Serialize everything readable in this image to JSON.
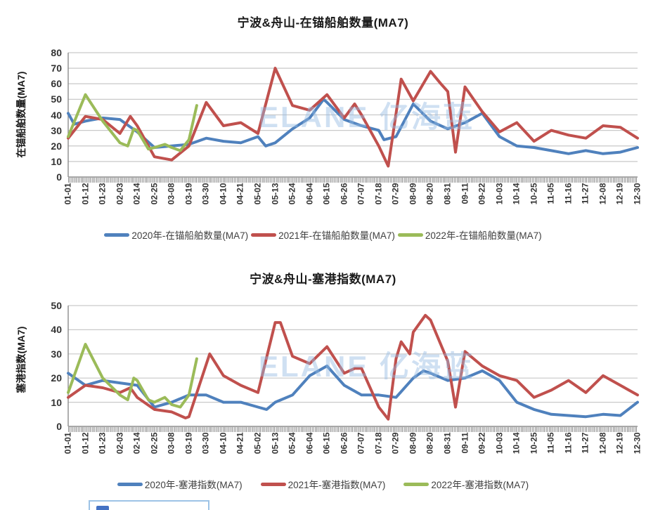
{
  "watermark": "ELANE 亿海蓝",
  "colors": {
    "y2020": "#4F81BD",
    "y2021": "#C0504D",
    "y2022": "#9BBB59",
    "grid": "#C9C9C9",
    "axis": "#8C8C8C",
    "title_text": "#1A1A1A",
    "tick_text": "#333333",
    "legend_text": "#404040",
    "watermark_blue": "#95BBE2",
    "partial_box_border": "#9DC3E6",
    "partial_box_icon": "#4472C4"
  },
  "x_ticks": [
    "01-01",
    "01-12",
    "01-23",
    "02-03",
    "02-14",
    "02-25",
    "03-08",
    "03-19",
    "03-30",
    "04-10",
    "04-21",
    "05-02",
    "05-13",
    "05-24",
    "06-04",
    "06-15",
    "06-26",
    "07-07",
    "07-18",
    "07-29",
    "08-09",
    "08-20",
    "08-31",
    "09-11",
    "09-22",
    "10-03",
    "10-14",
    "10-25",
    "11-05",
    "11-16",
    "11-27",
    "12-08",
    "12-19",
    "12-30"
  ],
  "x_unit": "tick_index (0 = 01-01, 33 = 12-30, 11 days per tick; fractional = dates between ticks)",
  "chart_data": [
    {
      "type": "line",
      "title": "宁波&舟山-在锚船舶数量(MA7)",
      "ylabel": "在锚船舶数量(MA7)",
      "xlabel": "",
      "ylim": [
        0,
        80
      ],
      "y_step": 10,
      "y_tick_labels": [
        0,
        10,
        20,
        30,
        40,
        50,
        60,
        70,
        80
      ],
      "grid": true,
      "legend_position": "bottom",
      "categories": [
        "01-01",
        "01-12",
        "01-23",
        "02-03",
        "02-14",
        "02-25",
        "03-08",
        "03-19",
        "03-30",
        "04-10",
        "04-21",
        "05-02",
        "05-13",
        "05-24",
        "06-04",
        "06-15",
        "06-26",
        "07-07",
        "07-18",
        "07-29",
        "08-09",
        "08-20",
        "08-31",
        "09-11",
        "09-22",
        "10-03",
        "10-14",
        "10-25",
        "11-05",
        "11-16",
        "11-27",
        "12-08",
        "12-19",
        "12-30"
      ],
      "series": [
        {
          "name": "2020年-在锚船舶数量(MA7)",
          "color_key": "y2020",
          "x": [
            0,
            0.35,
            1,
            2,
            3,
            4,
            5,
            6,
            7,
            8,
            9,
            10,
            11,
            11.45,
            12,
            13,
            14,
            14.8,
            15,
            16,
            17,
            18,
            18.3,
            19,
            20,
            21,
            22,
            23,
            24,
            25,
            26,
            27,
            28,
            29,
            30,
            31,
            32,
            33
          ],
          "values": [
            41,
            34,
            36,
            38,
            37,
            29,
            19,
            20,
            21,
            25,
            23,
            22,
            26,
            20,
            22,
            31,
            38,
            50,
            48,
            37,
            33,
            30,
            24,
            26,
            47,
            36,
            31,
            35,
            41,
            26,
            20,
            19,
            17,
            15,
            17,
            15,
            16,
            19
          ]
        },
        {
          "name": "2021年-在锚船舶数量(MA7)",
          "color_key": "y2021",
          "x": [
            0,
            1,
            2,
            3,
            3.6,
            4,
            5,
            6,
            7,
            8,
            9,
            10,
            11,
            12,
            13,
            14,
            15,
            16,
            16.6,
            17,
            18,
            18.55,
            19.3,
            20,
            21,
            21.6,
            22,
            22.45,
            23,
            24,
            25,
            26,
            27,
            28,
            29,
            30,
            31,
            32,
            33
          ],
          "values": [
            25,
            39,
            37,
            28,
            39,
            33,
            13,
            11,
            20,
            48,
            33,
            35,
            28,
            70,
            46,
            43,
            53,
            38,
            47,
            40,
            20,
            7,
            63,
            49,
            68,
            60,
            55,
            16,
            58,
            42,
            29,
            35,
            23,
            30,
            27,
            25,
            33,
            32,
            25
          ]
        },
        {
          "name": "2022年-在锚船舶数量(MA7)",
          "color_key": "y2022",
          "x": [
            0,
            1,
            2,
            3,
            3.45,
            3.8,
            4,
            4.65,
            5,
            5.6,
            6,
            6.5,
            7,
            7.45
          ],
          "values": [
            26,
            53,
            36,
            22,
            20,
            31,
            30,
            18,
            19,
            21,
            19,
            17,
            24,
            46
          ]
        }
      ]
    },
    {
      "type": "line",
      "title": "宁波&舟山-塞港指数(MA7)",
      "ylabel": "塞港指数(MA7)",
      "xlabel": "",
      "ylim": [
        0,
        50
      ],
      "y_step": 10,
      "y_tick_labels": [
        0,
        10,
        20,
        30,
        40,
        50
      ],
      "grid": true,
      "legend_position": "bottom",
      "categories": [
        "01-01",
        "01-12",
        "01-23",
        "02-03",
        "02-14",
        "02-25",
        "03-08",
        "03-19",
        "03-30",
        "04-10",
        "04-21",
        "05-02",
        "05-13",
        "05-24",
        "06-04",
        "06-15",
        "06-26",
        "07-07",
        "07-18",
        "07-29",
        "08-09",
        "08-20",
        "08-31",
        "09-11",
        "09-22",
        "10-03",
        "10-14",
        "10-25",
        "11-05",
        "11-16",
        "11-27",
        "12-08",
        "12-19",
        "12-30"
      ],
      "series": [
        {
          "name": "2020年-塞港指数(MA7)",
          "color_key": "y2020",
          "x": [
            0,
            1,
            2,
            3,
            4,
            5,
            6,
            7,
            8,
            9,
            10,
            11,
            11.5,
            12,
            13,
            14,
            15,
            16,
            17,
            18,
            19,
            20,
            20.6,
            21,
            22,
            23,
            24,
            25,
            26,
            27,
            28,
            29,
            30,
            31,
            32,
            33
          ],
          "values": [
            22,
            17,
            19,
            18,
            17,
            8,
            10,
            13,
            13,
            10,
            10,
            8,
            7,
            10,
            13,
            21,
            25,
            17,
            13,
            13,
            12,
            20,
            23,
            22,
            19,
            20,
            23,
            19,
            10,
            7,
            5,
            4.5,
            4,
            5,
            4.5,
            10
          ]
        },
        {
          "name": "2021年-塞港指数(MA7)",
          "color_key": "y2021",
          "x": [
            0,
            1,
            2,
            3,
            3.6,
            4,
            5,
            6,
            6.8,
            7,
            8.2,
            9,
            10,
            11,
            12,
            12.3,
            13,
            14,
            15,
            16,
            16.6,
            17,
            18,
            18.55,
            19,
            19.3,
            19.8,
            20,
            20.7,
            21,
            22,
            22.45,
            23,
            24,
            25,
            26,
            27,
            28,
            29,
            30,
            31,
            32,
            33
          ],
          "values": [
            12,
            17,
            16,
            14,
            16,
            12,
            7,
            6,
            3.5,
            4,
            30,
            21,
            17,
            14,
            43,
            43,
            29,
            26,
            33,
            22,
            24,
            24,
            8,
            3,
            28,
            35,
            30,
            39,
            46,
            44,
            27,
            8,
            31,
            25,
            21,
            19,
            12,
            15,
            19,
            14,
            21,
            17,
            13
          ]
        },
        {
          "name": "2022年-塞港指数(MA7)",
          "color_key": "y2022",
          "x": [
            0,
            1,
            2,
            3,
            3.45,
            3.8,
            4,
            4.65,
            5,
            5.6,
            6,
            6.5,
            7,
            7.45
          ],
          "values": [
            14,
            34,
            20,
            13,
            11,
            20,
            19,
            11,
            10,
            12,
            9,
            8,
            13,
            28
          ]
        }
      ]
    }
  ]
}
